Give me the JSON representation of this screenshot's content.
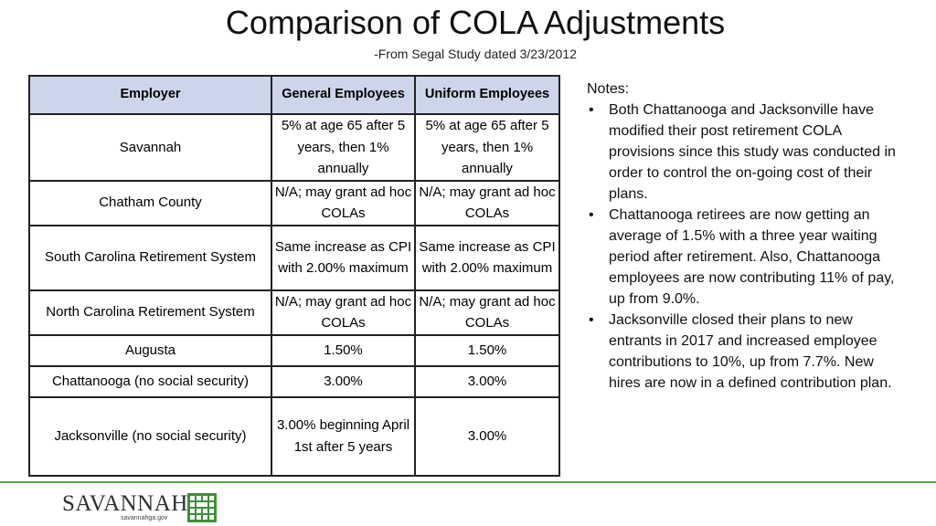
{
  "title": "Comparison of COLA Adjustments",
  "subtitle": "-From Segal Study dated 3/23/2012",
  "table": {
    "headers": [
      "Employer",
      "General Employees",
      "Uniform Employees"
    ],
    "rows": [
      {
        "employer": "Savannah",
        "general": "5% at age 65 after 5 years, then 1% annually",
        "uniform": "5% at age 65 after 5 years, then 1% annually"
      },
      {
        "employer": "Chatham County",
        "general": "N/A; may grant ad hoc COLAs",
        "uniform": "N/A; may grant ad hoc COLAs"
      },
      {
        "employer": "South Carolina Retirement System",
        "general": "Same increase as CPI with 2.00% maximum",
        "uniform": "Same increase as CPI with 2.00% maximum"
      },
      {
        "employer": "North Carolina Retirement System",
        "general": "N/A; may grant ad hoc COLAs",
        "uniform": "N/A; may grant ad hoc COLAs"
      },
      {
        "employer": "Augusta",
        "general": "1.50%",
        "uniform": "1.50%"
      },
      {
        "employer": "Chattanooga (no social security)",
        "general": "3.00%",
        "uniform": "3.00%"
      },
      {
        "employer": "Jacksonville (no social security)",
        "general": "3.00% beginning April 1st after 5 years",
        "uniform": "3.00%"
      }
    ]
  },
  "notes": {
    "heading": "Notes:",
    "bullet_char": "•",
    "items": [
      "Both Chattanooga and Jacksonville have modified their post retirement COLA provisions since this study was conducted in order to control the on-going cost of their plans.",
      "Chattanooga retirees are now getting an average of 1.5% with a three year waiting period after retirement. Also, Chattanooga employees are now contributing 11% of pay, up from 9.0%.",
      "Jacksonville closed their plans to new entrants in 2017 and increased employee contributions to 10%, up from 7.7%. New hires are now in a defined contribution plan."
    ]
  },
  "footer": {
    "logo_text": "SAVANNAH",
    "logo_url": "savannahga.gov",
    "rule_color": "#5aa34a",
    "logo_mark_color": "#3f8f3a"
  },
  "colors": {
    "header_fill": "#ccd5e9",
    "border": "#222222"
  }
}
